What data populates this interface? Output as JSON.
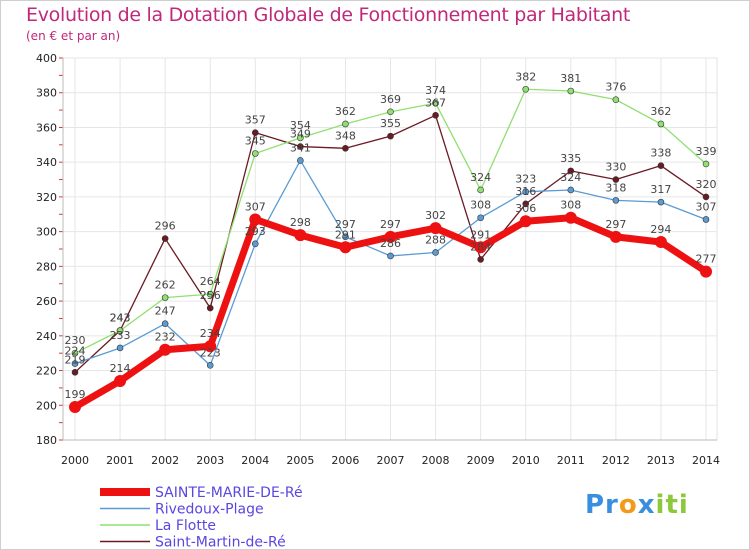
{
  "chart_data": {
    "type": "line",
    "title": "Evolution de la Dotation Globale de Fonctionnement par Habitant",
    "subtitle": "(en € et par an)",
    "x": [
      "2000",
      "2001",
      "2002",
      "2003",
      "2004",
      "2005",
      "2006",
      "2007",
      "2008",
      "2009",
      "2010",
      "2011",
      "2012",
      "2013",
      "2014"
    ],
    "ylim": [
      180,
      400
    ],
    "yticks": [
      180,
      200,
      220,
      240,
      260,
      280,
      300,
      320,
      340,
      360,
      380,
      400
    ],
    "series": [
      {
        "name": "Saint-Martin-de-Ré",
        "color": "#6b1a22",
        "values": [
          219,
          243,
          296,
          256,
          357,
          349,
          348,
          355,
          367,
          284,
          316,
          335,
          330,
          338,
          320
        ]
      },
      {
        "name": "La Flotte",
        "color": "#8fe070",
        "values": [
          230,
          243,
          262,
          264,
          345,
          354,
          362,
          369,
          374,
          324,
          382,
          381,
          376,
          362,
          339
        ]
      },
      {
        "name": "Rivedoux-Plage",
        "color": "#5a9bd4",
        "values": [
          224,
          233,
          247,
          223,
          293,
          341,
          297,
          286,
          288,
          308,
          323,
          324,
          318,
          317,
          307
        ]
      },
      {
        "name": "SAINTE-MARIE-DE-Ré",
        "color": "#ee1111",
        "values": [
          199,
          214,
          232,
          234,
          307,
          298,
          291,
          297,
          302,
          291,
          306,
          308,
          297,
          294,
          277
        ]
      }
    ],
    "legend": [
      "SAINTE-MARIE-DE-Ré",
      "Rivedoux-Plage",
      "La Flotte",
      "Saint-Martin-de-Ré"
    ]
  },
  "logo": {
    "text_p": "Pr",
    "text_o": "o",
    "text_x": "x",
    "text_i": "iti"
  }
}
